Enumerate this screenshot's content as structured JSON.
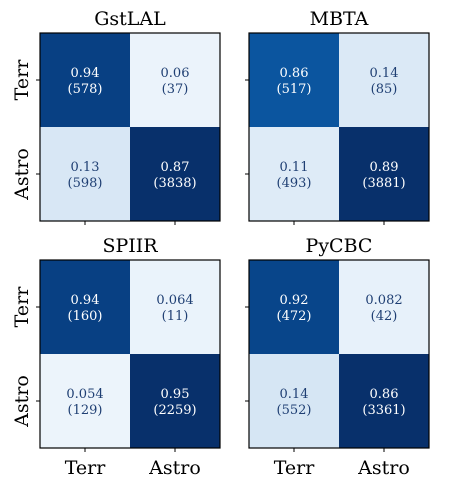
{
  "chart_data": [
    {
      "type": "heatmap",
      "title": "GstLAL",
      "row_labels": [
        "Terr",
        "Astro"
      ],
      "col_labels": [
        "Terr",
        "Astro"
      ],
      "values": [
        [
          0.94,
          0.06
        ],
        [
          0.13,
          0.87
        ]
      ],
      "value_labels": [
        [
          "0.94",
          "0.06"
        ],
        [
          "0.13",
          "0.87"
        ]
      ],
      "counts": [
        [
          578,
          37
        ],
        [
          598,
          3838
        ]
      ],
      "count_labels": [
        [
          "(578)",
          "(37)"
        ],
        [
          "(598)",
          "(3838)"
        ]
      ]
    },
    {
      "type": "heatmap",
      "title": "MBTA",
      "row_labels": [
        "Terr",
        "Astro"
      ],
      "col_labels": [
        "Terr",
        "Astro"
      ],
      "values": [
        [
          0.86,
          0.14
        ],
        [
          0.11,
          0.89
        ]
      ],
      "value_labels": [
        [
          "0.86",
          "0.14"
        ],
        [
          "0.11",
          "0.89"
        ]
      ],
      "counts": [
        [
          517,
          85
        ],
        [
          493,
          3881
        ]
      ],
      "count_labels": [
        [
          "(517)",
          "(85)"
        ],
        [
          "(493)",
          "(3881)"
        ]
      ]
    },
    {
      "type": "heatmap",
      "title": "SPIIR",
      "row_labels": [
        "Terr",
        "Astro"
      ],
      "col_labels": [
        "Terr",
        "Astro"
      ],
      "values": [
        [
          0.94,
          0.064
        ],
        [
          0.054,
          0.95
        ]
      ],
      "value_labels": [
        [
          "0.94",
          "0.064"
        ],
        [
          "0.054",
          "0.95"
        ]
      ],
      "counts": [
        [
          160,
          11
        ],
        [
          129,
          2259
        ]
      ],
      "count_labels": [
        [
          "(160)",
          "(11)"
        ],
        [
          "(129)",
          "(2259)"
        ]
      ]
    },
    {
      "type": "heatmap",
      "title": "PyCBC",
      "row_labels": [
        "Terr",
        "Astro"
      ],
      "col_labels": [
        "Terr",
        "Astro"
      ],
      "values": [
        [
          0.92,
          0.082
        ],
        [
          0.14,
          0.86
        ]
      ],
      "value_labels": [
        [
          "0.92",
          "0.082"
        ],
        [
          "0.14",
          "0.86"
        ]
      ],
      "counts": [
        [
          472,
          42
        ],
        [
          552,
          3361
        ]
      ],
      "count_labels": [
        [
          "(472)",
          "(42)"
        ],
        [
          "(552)",
          "(3361)"
        ]
      ]
    }
  ],
  "colormap": {
    "name": "Blues",
    "low": "#f7fbff",
    "high": "#08306b",
    "text_color": "#1f3f73"
  }
}
